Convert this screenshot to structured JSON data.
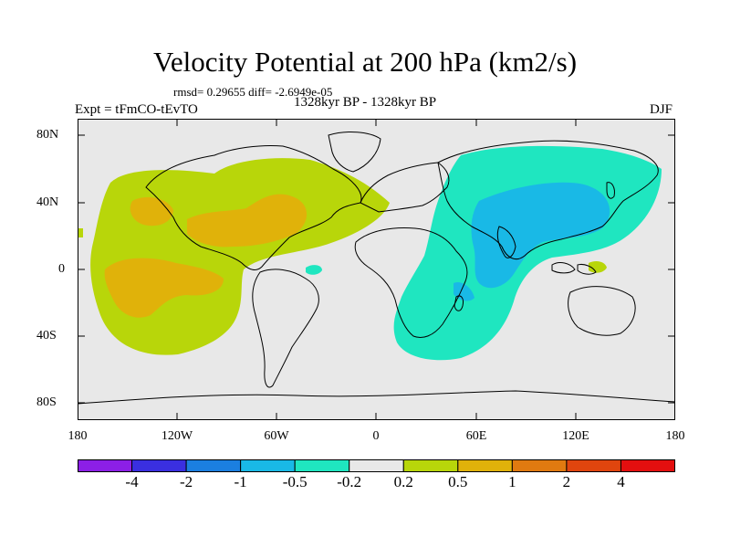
{
  "header": {
    "title": "Velocity Potential at 200 hPa (km2/s)",
    "stats": "rmsd= 0.29655 diff= -2.6949e-05",
    "experiment": "Expt = tFmCO-tEvTO",
    "period": "1328kyr BP - 1328kyr BP",
    "season": "DJF"
  },
  "axes": {
    "y_ticks": [
      "80N",
      "40N",
      "0",
      "40S",
      "80S"
    ],
    "x_ticks": [
      "180",
      "120W",
      "60W",
      "0",
      "60E",
      "120E",
      "180"
    ]
  },
  "colorbar": {
    "labels": [
      "-4",
      "-2",
      "-1",
      "-0.5",
      "-0.2",
      "0.2",
      "0.5",
      "1",
      "2",
      "4"
    ],
    "colors": [
      "#8c1fe6",
      "#3a2fe0",
      "#1b7fe0",
      "#19b9e6",
      "#1fe6c0",
      "#e8e8e8",
      "#b8d60a",
      "#e0b20a",
      "#e07a10",
      "#e0450e",
      "#e30f0f"
    ]
  },
  "colors": {
    "ocean_land_background": "#e8e8e8",
    "positive_low": "#b8d60a",
    "positive_mid": "#e0b20a",
    "negative_low": "#1fe6c0",
    "negative_mid": "#19b9e6",
    "coastline": "#000000"
  }
}
